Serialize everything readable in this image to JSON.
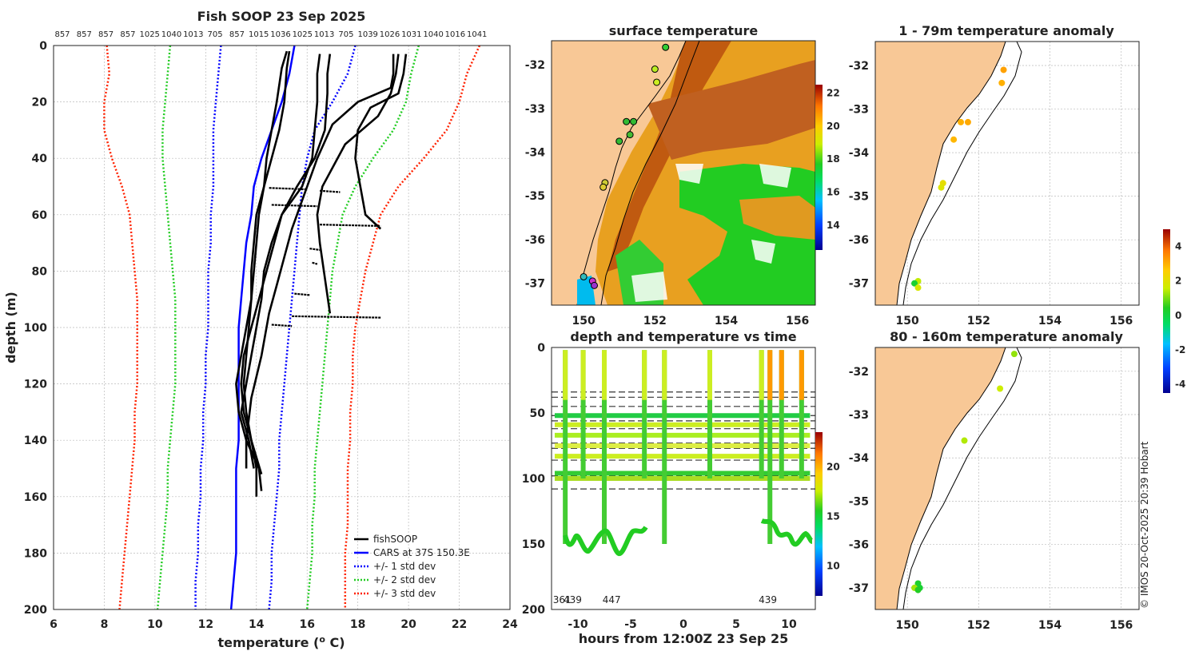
{
  "chart_data": [
    {
      "type": "line",
      "panel": "profile",
      "title": "Fish SOOP 23 Sep 2025",
      "xlabel": "temperature (",
      "xlabel_sup": "o",
      "xlabel_end": " C)",
      "ylabel": "depth (m)",
      "xlim": [
        6,
        24
      ],
      "ylim": [
        0,
        200
      ],
      "xticks": [
        "6",
        "8",
        "10",
        "12",
        "14",
        "16",
        "18",
        "20",
        "22",
        "24"
      ],
      "yticks": [
        "0",
        "20",
        "40",
        "60",
        "80",
        "100",
        "120",
        "140",
        "160",
        "180",
        "200"
      ],
      "top_labels": [
        "857",
        "857",
        "857",
        "857",
        "1025",
        "1040",
        "1013",
        "705",
        "857",
        "1015",
        "1036",
        "1025",
        "1013",
        "705",
        "1039",
        "1026",
        "1031",
        "1040",
        "1016",
        "1041"
      ],
      "legend": [
        "fishSOOP",
        "CARS at 37S 150.3E",
        "+/- 1 std dev",
        "+/- 2 std dev",
        "+/- 3 std dev"
      ],
      "series": [
        {
          "name": "CARS at 37S 150.3E",
          "color": "#0000ff",
          "style": "solid",
          "temp": [
            15.5,
            15.3,
            15.0,
            14.6,
            14.2,
            13.9,
            13.8,
            13.6,
            13.5,
            13.4,
            13.3,
            13.3,
            13.3,
            13.3,
            13.3,
            13.2,
            13.2,
            13.2,
            13.2,
            13.1,
            13.0
          ],
          "depth": [
            0,
            10,
            20,
            30,
            40,
            50,
            60,
            70,
            80,
            90,
            100,
            110,
            120,
            130,
            140,
            150,
            160,
            170,
            180,
            190,
            200
          ]
        },
        {
          "name": "-1 std",
          "color": "#0000ff",
          "style": "dotted",
          "temp": [
            12.6,
            12.5,
            12.4,
            12.3,
            12.3,
            12.3,
            12.2,
            12.2,
            12.1,
            12.1,
            12.1,
            12.0,
            12.0,
            11.9,
            11.9,
            11.8,
            11.8,
            11.7,
            11.7,
            11.6,
            11.6
          ],
          "depth": [
            0,
            10,
            20,
            30,
            40,
            50,
            60,
            70,
            80,
            90,
            100,
            110,
            120,
            130,
            140,
            150,
            160,
            170,
            180,
            190,
            200
          ]
        },
        {
          "name": "+1 std",
          "color": "#0000ff",
          "style": "dotted",
          "temp": [
            17.9,
            17.6,
            17.0,
            16.3,
            16.0,
            15.8,
            15.7,
            15.6,
            15.5,
            15.4,
            15.3,
            15.2,
            15.1,
            15.0,
            14.9,
            14.9,
            14.8,
            14.7,
            14.6,
            14.6,
            14.5
          ],
          "depth": [
            0,
            10,
            20,
            30,
            40,
            50,
            60,
            70,
            80,
            90,
            100,
            110,
            120,
            130,
            140,
            150,
            160,
            170,
            180,
            190,
            200
          ]
        },
        {
          "name": "-2 std",
          "color": "#22cc22",
          "style": "dotted",
          "temp": [
            10.6,
            10.5,
            10.4,
            10.3,
            10.3,
            10.4,
            10.5,
            10.6,
            10.7,
            10.8,
            10.8,
            10.8,
            10.8,
            10.7,
            10.6,
            10.5,
            10.5,
            10.4,
            10.3,
            10.2,
            10.1
          ],
          "depth": [
            0,
            10,
            20,
            30,
            40,
            50,
            60,
            70,
            80,
            90,
            100,
            110,
            120,
            130,
            140,
            150,
            160,
            170,
            180,
            190,
            200
          ]
        },
        {
          "name": "+2 std",
          "color": "#22cc22",
          "style": "dotted",
          "temp": [
            20.4,
            20.1,
            19.9,
            19.4,
            18.6,
            17.9,
            17.4,
            17.2,
            17.0,
            16.9,
            16.8,
            16.7,
            16.6,
            16.5,
            16.4,
            16.3,
            16.3,
            16.2,
            16.2,
            16.1,
            16.0
          ],
          "depth": [
            0,
            10,
            20,
            30,
            40,
            50,
            60,
            70,
            80,
            90,
            100,
            110,
            120,
            130,
            140,
            150,
            160,
            170,
            180,
            190,
            200
          ]
        },
        {
          "name": "-3 std",
          "color": "#ff2200",
          "style": "dotted",
          "temp": [
            8.1,
            8.2,
            8.0,
            8.0,
            8.3,
            8.7,
            9.0,
            9.1,
            9.2,
            9.3,
            9.3,
            9.3,
            9.3,
            9.2,
            9.2,
            9.1,
            9.0,
            8.9,
            8.8,
            8.7,
            8.6
          ],
          "depth": [
            0,
            10,
            20,
            30,
            40,
            50,
            60,
            70,
            80,
            90,
            100,
            110,
            120,
            130,
            140,
            150,
            160,
            170,
            180,
            190,
            200
          ]
        },
        {
          "name": "+3 std",
          "color": "#ff2200",
          "style": "dotted",
          "temp": [
            22.8,
            22.3,
            22.0,
            21.5,
            20.6,
            19.6,
            18.9,
            18.6,
            18.3,
            18.1,
            17.9,
            17.8,
            17.8,
            17.7,
            17.7,
            17.6,
            17.6,
            17.6,
            17.5,
            17.5,
            17.5
          ],
          "depth": [
            0,
            10,
            20,
            30,
            40,
            50,
            60,
            70,
            80,
            90,
            100,
            110,
            120,
            130,
            140,
            150,
            160,
            170,
            180,
            190,
            200
          ]
        }
      ],
      "profiles": [
        {
          "temp": [
            15.2,
            15.0,
            14.8,
            14.6,
            14.4,
            14.3,
            14.1,
            14.0,
            13.9,
            13.8,
            13.7,
            13.6,
            13.5,
            13.6,
            13.8,
            14.0,
            14.0
          ],
          "depth": [
            2,
            8,
            20,
            30,
            40,
            50,
            60,
            70,
            80,
            90,
            100,
            110,
            120,
            130,
            140,
            150,
            160
          ]
        },
        {
          "temp": [
            15.3,
            15.2,
            15.1,
            14.9,
            14.6,
            14.3,
            14.0,
            13.9,
            13.8,
            13.8,
            13.6,
            13.4,
            13.2,
            13.3,
            13.6,
            14.1,
            14.2
          ],
          "depth": [
            2,
            8,
            20,
            30,
            40,
            50,
            60,
            70,
            80,
            90,
            100,
            110,
            120,
            130,
            140,
            150,
            158
          ]
        },
        {
          "temp": [
            16.5,
            16.4,
            16.4,
            16.3,
            16.2,
            15.8,
            15.0,
            14.6,
            14.3,
            14.2,
            14.0,
            13.8,
            13.6,
            13.4,
            13.7,
            13.9
          ],
          "depth": [
            3,
            10,
            20,
            30,
            40,
            50,
            60,
            70,
            80,
            90,
            100,
            110,
            120,
            130,
            140,
            150
          ]
        },
        {
          "temp": [
            16.9,
            16.8,
            16.8,
            16.7,
            16.3,
            15.6,
            15.0,
            14.7,
            14.4,
            14.1,
            13.8,
            13.5,
            13.4,
            13.5,
            13.8,
            14.2
          ],
          "depth": [
            3,
            10,
            17,
            30,
            40,
            50,
            60,
            70,
            80,
            90,
            100,
            110,
            120,
            130,
            140,
            152
          ]
        },
        {
          "temp": [
            19.4,
            19.4,
            19.3,
            18.0,
            17.0,
            16.4,
            15.8,
            15.4,
            15.1,
            14.8,
            14.5,
            14.2,
            13.8,
            13.6,
            13.6
          ],
          "depth": [
            3,
            10,
            15,
            20,
            28,
            40,
            55,
            65,
            75,
            85,
            95,
            110,
            125,
            140,
            150
          ]
        },
        {
          "temp": [
            19.9,
            19.8,
            19.6,
            18.5,
            18.0,
            17.9,
            18.1,
            18.3,
            18.9
          ],
          "depth": [
            3,
            10,
            17,
            22,
            30,
            40,
            50,
            60,
            65
          ]
        },
        {
          "temp": [
            19.6,
            19.5,
            19.3,
            18.8,
            17.5,
            16.6,
            16.4,
            16.5,
            16.9
          ],
          "depth": [
            3,
            10,
            17,
            25,
            35,
            50,
            60,
            70,
            95
          ]
        }
      ]
    },
    {
      "type": "heatmap",
      "panel": "surface temperature",
      "title": "surface temperature",
      "xticks": [
        "150",
        "152",
        "154",
        "156"
      ],
      "yticks": [
        "-32",
        "-33",
        "-34",
        "-35",
        "-36",
        "-37"
      ],
      "colorbar_ticks": [
        "22",
        "20",
        "18",
        "16",
        "14"
      ],
      "colorbar_range": [
        12.5,
        22.5
      ]
    },
    {
      "type": "scatter",
      "panel": "depth and temperature vs time",
      "title": "depth and temperature vs time",
      "xlabel": "hours from 12:00Z 23 Sep 25",
      "xticks": [
        "-10",
        "-5",
        "0",
        "5",
        "10"
      ],
      "xlim": [
        -12.5,
        12.5
      ],
      "yticks": [
        "0",
        "50",
        "100",
        "150",
        "200"
      ],
      "ylim": [
        0,
        200
      ],
      "colorbar_ticks": [
        "20",
        "15",
        "10"
      ],
      "dashed_depths": [
        34,
        38,
        45,
        52,
        56,
        62,
        73,
        77,
        86,
        98,
        108
      ],
      "vessel_labels": [
        "361",
        "439",
        "447",
        "439"
      ],
      "spike_hours": [
        -11.2,
        -9.5,
        -7.5,
        -3.7,
        -1.8,
        2.5,
        7.4,
        8.2,
        9.3,
        11.2
      ],
      "trawl_bands": [
        52,
        59,
        67,
        75,
        83,
        96,
        100
      ]
    },
    {
      "type": "scatter",
      "panel": "1 - 79m temperature anomaly",
      "title": "1 - 79m temperature anomaly",
      "xticks": [
        "150",
        "152",
        "154",
        "156"
      ],
      "yticks": [
        "-32",
        "-33",
        "-34",
        "-35",
        "-36",
        "-37"
      ],
      "points": [
        [
          152.7,
          -32.1,
          3.2
        ],
        [
          152.65,
          -32.4,
          3.0
        ],
        [
          151.7,
          -33.3,
          3.1
        ],
        [
          151.5,
          -33.3,
          3.0
        ],
        [
          151.3,
          -33.7,
          2.9
        ],
        [
          151.0,
          -34.7,
          2.1
        ],
        [
          150.95,
          -34.8,
          1.9
        ],
        [
          150.3,
          -36.95,
          1.5
        ],
        [
          150.2,
          -37.0,
          0.2
        ],
        [
          150.3,
          -37.1,
          1.8
        ]
      ]
    },
    {
      "type": "scatter",
      "panel": "80 - 160m temperature anomaly",
      "title": "80 - 160m temperature anomaly",
      "xticks": [
        "150",
        "152",
        "154",
        "156"
      ],
      "yticks": [
        "-32",
        "-33",
        "-34",
        "-35",
        "-36",
        "-37"
      ],
      "points": [
        [
          153.0,
          -31.6,
          1.2
        ],
        [
          152.6,
          -32.4,
          1.6
        ],
        [
          151.6,
          -33.6,
          1.4
        ],
        [
          150.3,
          -36.9,
          0.3
        ],
        [
          150.35,
          -37.0,
          0.2
        ],
        [
          150.2,
          -37.0,
          1.3
        ],
        [
          150.3,
          -37.05,
          0.4
        ]
      ]
    }
  ],
  "anomaly_colorbar_ticks": [
    "4",
    "2",
    "0",
    "-2",
    "-4"
  ],
  "credit": "© IMOS 20-Oct-2025 20:39 Hobart"
}
